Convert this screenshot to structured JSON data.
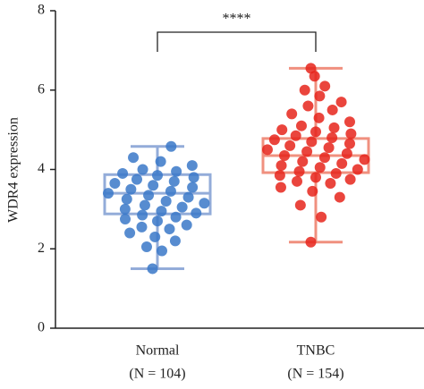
{
  "chart_data": {
    "type": "box",
    "y_label": "WDR4 expression",
    "categories": [
      "Normal",
      "TNBC"
    ],
    "group_labels": [
      "(N = 104)",
      "(N = 154)"
    ],
    "ylim": [
      0,
      8
    ],
    "yticks": [
      0,
      2,
      4,
      6,
      8
    ],
    "annotation": "****",
    "series": [
      {
        "name": "Normal",
        "color": "#3a78c8",
        "box_color": "#93acd9",
        "min": 1.5,
        "q1": 2.88,
        "median": 3.4,
        "q3": 3.87,
        "max": 4.58,
        "points": [
          1.5,
          1.95,
          2.05,
          2.2,
          2.3,
          2.4,
          2.5,
          2.55,
          2.6,
          2.7,
          2.75,
          2.8,
          2.85,
          2.9,
          2.95,
          3.0,
          3.05,
          3.1,
          3.15,
          3.2,
          3.25,
          3.3,
          3.35,
          3.4,
          3.45,
          3.5,
          3.55,
          3.6,
          3.65,
          3.7,
          3.75,
          3.8,
          3.85,
          3.9,
          3.95,
          4.0,
          4.1,
          4.2,
          4.3,
          4.58
        ]
      },
      {
        "name": "TNBC",
        "color": "#e6251b",
        "box_color": "#f0907f",
        "min": 2.17,
        "q1": 3.92,
        "median": 4.35,
        "q3": 4.78,
        "max": 6.55,
        "points": [
          2.17,
          2.8,
          3.1,
          3.3,
          3.45,
          3.55,
          3.65,
          3.7,
          3.75,
          3.8,
          3.85,
          3.9,
          3.95,
          4.0,
          4.05,
          4.1,
          4.15,
          4.2,
          4.25,
          4.3,
          4.35,
          4.4,
          4.45,
          4.5,
          4.55,
          4.6,
          4.65,
          4.7,
          4.75,
          4.8,
          4.85,
          4.9,
          4.95,
          5.0,
          5.05,
          5.1,
          5.2,
          5.3,
          5.4,
          5.5,
          5.6,
          5.7,
          5.85,
          6.0,
          6.1,
          6.35,
          6.55
        ]
      }
    ]
  }
}
